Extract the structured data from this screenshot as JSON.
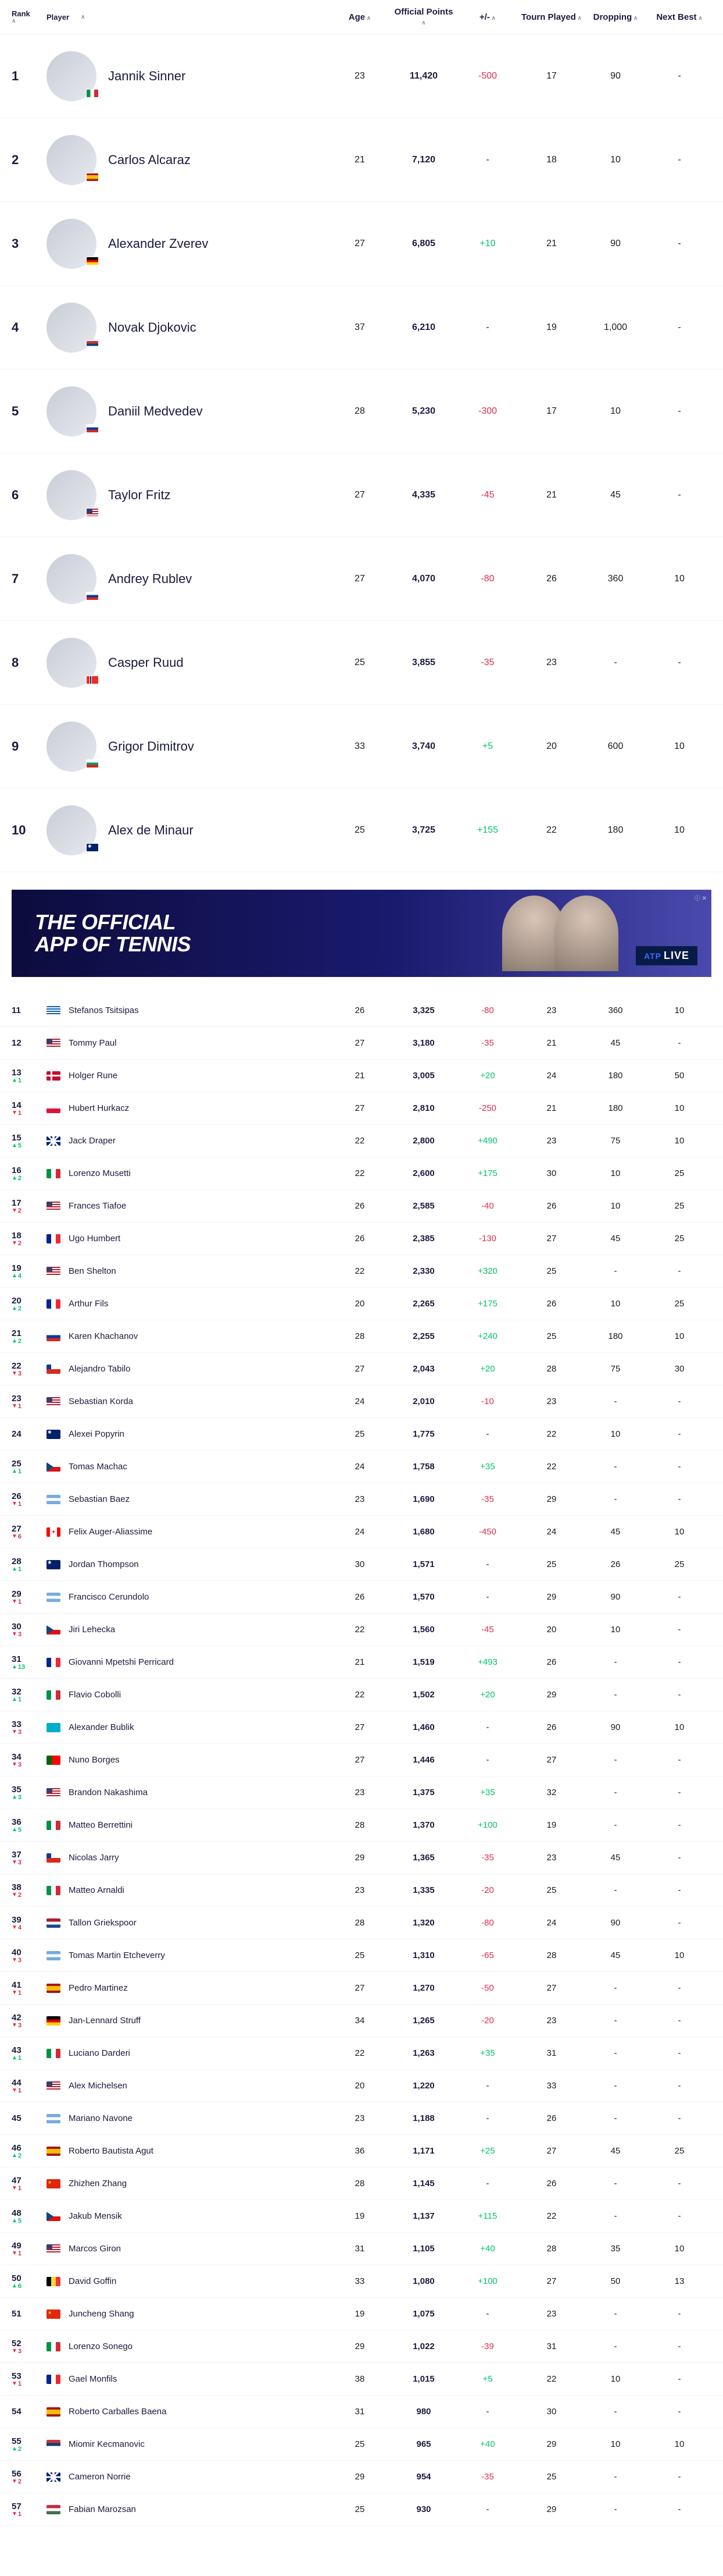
{
  "headers": {
    "rank": "Rank",
    "player": "Player",
    "age": "Age",
    "points": "Official Points",
    "pm": "+/-",
    "tourn": "Tourn Played",
    "dropping": "Dropping",
    "next": "Next Best"
  },
  "ad": {
    "title_line1": "THE OFFICIAL",
    "title_line2": "APP OF TENNIS",
    "live": "LIVE",
    "tag": "ⓘ ✕"
  },
  "top": [
    {
      "rank": "1",
      "change": "",
      "dir": "",
      "flag": "ITA",
      "name": "Jannik Sinner",
      "age": "23",
      "pts": "11,420",
      "pm": "-500",
      "pmc": "neg",
      "tourn": "17",
      "drop": "90",
      "next": "-"
    },
    {
      "rank": "2",
      "change": "",
      "dir": "",
      "flag": "ESP",
      "name": "Carlos Alcaraz",
      "age": "21",
      "pts": "7,120",
      "pm": "-",
      "pmc": "",
      "tourn": "18",
      "drop": "10",
      "next": "-"
    },
    {
      "rank": "3",
      "change": "",
      "dir": "",
      "flag": "GER",
      "name": "Alexander Zverev",
      "age": "27",
      "pts": "6,805",
      "pm": "+10",
      "pmc": "pos",
      "tourn": "21",
      "drop": "90",
      "next": "-"
    },
    {
      "rank": "4",
      "change": "",
      "dir": "",
      "flag": "SRB",
      "name": "Novak Djokovic",
      "age": "37",
      "pts": "6,210",
      "pm": "-",
      "pmc": "",
      "tourn": "19",
      "drop": "1,000",
      "next": "-"
    },
    {
      "rank": "5",
      "change": "",
      "dir": "",
      "flag": "RUS",
      "name": "Daniil Medvedev",
      "age": "28",
      "pts": "5,230",
      "pm": "-300",
      "pmc": "neg",
      "tourn": "17",
      "drop": "10",
      "next": "-"
    },
    {
      "rank": "6",
      "change": "",
      "dir": "",
      "flag": "USA",
      "name": "Taylor Fritz",
      "age": "27",
      "pts": "4,335",
      "pm": "-45",
      "pmc": "neg",
      "tourn": "21",
      "drop": "45",
      "next": "-"
    },
    {
      "rank": "7",
      "change": "",
      "dir": "",
      "flag": "RUS",
      "name": "Andrey Rublev",
      "age": "27",
      "pts": "4,070",
      "pm": "-80",
      "pmc": "neg",
      "tourn": "26",
      "drop": "360",
      "next": "10"
    },
    {
      "rank": "8",
      "change": "",
      "dir": "",
      "flag": "NOR",
      "name": "Casper Ruud",
      "age": "25",
      "pts": "3,855",
      "pm": "-35",
      "pmc": "neg",
      "tourn": "23",
      "drop": "-",
      "next": "-"
    },
    {
      "rank": "9",
      "change": "",
      "dir": "",
      "flag": "BUL",
      "name": "Grigor Dimitrov",
      "age": "33",
      "pts": "3,740",
      "pm": "+5",
      "pmc": "pos",
      "tourn": "20",
      "drop": "600",
      "next": "10"
    },
    {
      "rank": "10",
      "change": "",
      "dir": "",
      "flag": "AUS",
      "name": "Alex de Minaur",
      "age": "25",
      "pts": "3,725",
      "pm": "+155",
      "pmc": "pos",
      "tourn": "22",
      "drop": "180",
      "next": "10"
    }
  ],
  "rest": [
    {
      "rank": "11",
      "change": "",
      "dir": "",
      "flag": "GRE",
      "name": "Stefanos Tsitsipas",
      "age": "26",
      "pts": "3,325",
      "pm": "-80",
      "pmc": "neg",
      "tourn": "23",
      "drop": "360",
      "next": "10"
    },
    {
      "rank": "12",
      "change": "",
      "dir": "",
      "flag": "USA",
      "name": "Tommy Paul",
      "age": "27",
      "pts": "3,180",
      "pm": "-35",
      "pmc": "neg",
      "tourn": "21",
      "drop": "45",
      "next": "-"
    },
    {
      "rank": "13",
      "change": "1",
      "dir": "up",
      "flag": "DEN",
      "name": "Holger Rune",
      "age": "21",
      "pts": "3,005",
      "pm": "+20",
      "pmc": "pos",
      "tourn": "24",
      "drop": "180",
      "next": "50"
    },
    {
      "rank": "14",
      "change": "1",
      "dir": "down",
      "flag": "POL",
      "name": "Hubert Hurkacz",
      "age": "27",
      "pts": "2,810",
      "pm": "-250",
      "pmc": "neg",
      "tourn": "21",
      "drop": "180",
      "next": "10"
    },
    {
      "rank": "15",
      "change": "5",
      "dir": "up",
      "flag": "GBR",
      "name": "Jack Draper",
      "age": "22",
      "pts": "2,800",
      "pm": "+490",
      "pmc": "pos",
      "tourn": "23",
      "drop": "75",
      "next": "10"
    },
    {
      "rank": "16",
      "change": "2",
      "dir": "up",
      "flag": "ITA",
      "name": "Lorenzo Musetti",
      "age": "22",
      "pts": "2,600",
      "pm": "+175",
      "pmc": "pos",
      "tourn": "30",
      "drop": "10",
      "next": "25"
    },
    {
      "rank": "17",
      "change": "2",
      "dir": "down",
      "flag": "USA",
      "name": "Frances Tiafoe",
      "age": "26",
      "pts": "2,585",
      "pm": "-40",
      "pmc": "neg",
      "tourn": "26",
      "drop": "10",
      "next": "25"
    },
    {
      "rank": "18",
      "change": "2",
      "dir": "down",
      "flag": "FRA",
      "name": "Ugo Humbert",
      "age": "26",
      "pts": "2,385",
      "pm": "-130",
      "pmc": "neg",
      "tourn": "27",
      "drop": "45",
      "next": "25"
    },
    {
      "rank": "19",
      "change": "4",
      "dir": "up",
      "flag": "USA",
      "name": "Ben Shelton",
      "age": "22",
      "pts": "2,330",
      "pm": "+320",
      "pmc": "pos",
      "tourn": "25",
      "drop": "-",
      "next": "-"
    },
    {
      "rank": "20",
      "change": "2",
      "dir": "up",
      "flag": "FRA",
      "name": "Arthur Fils",
      "age": "20",
      "pts": "2,265",
      "pm": "+175",
      "pmc": "pos",
      "tourn": "26",
      "drop": "10",
      "next": "25"
    },
    {
      "rank": "21",
      "change": "2",
      "dir": "up",
      "flag": "RUS",
      "name": "Karen Khachanov",
      "age": "28",
      "pts": "2,255",
      "pm": "+240",
      "pmc": "pos",
      "tourn": "25",
      "drop": "180",
      "next": "10"
    },
    {
      "rank": "22",
      "change": "3",
      "dir": "down",
      "flag": "CHI",
      "name": "Alejandro Tabilo",
      "age": "27",
      "pts": "2,043",
      "pm": "+20",
      "pmc": "pos",
      "tourn": "28",
      "drop": "75",
      "next": "30"
    },
    {
      "rank": "23",
      "change": "1",
      "dir": "down",
      "flag": "USA",
      "name": "Sebastian Korda",
      "age": "24",
      "pts": "2,010",
      "pm": "-10",
      "pmc": "neg",
      "tourn": "23",
      "drop": "-",
      "next": "-"
    },
    {
      "rank": "24",
      "change": "",
      "dir": "",
      "flag": "AUS",
      "name": "Alexei Popyrin",
      "age": "25",
      "pts": "1,775",
      "pm": "-",
      "pmc": "",
      "tourn": "22",
      "drop": "10",
      "next": "-"
    },
    {
      "rank": "25",
      "change": "1",
      "dir": "up",
      "flag": "CZE",
      "name": "Tomas Machac",
      "age": "24",
      "pts": "1,758",
      "pm": "+35",
      "pmc": "pos",
      "tourn": "22",
      "drop": "-",
      "next": "-"
    },
    {
      "rank": "26",
      "change": "1",
      "dir": "down",
      "flag": "ARG",
      "name": "Sebastian Baez",
      "age": "23",
      "pts": "1,690",
      "pm": "-35",
      "pmc": "neg",
      "tourn": "29",
      "drop": "-",
      "next": "-"
    },
    {
      "rank": "27",
      "change": "6",
      "dir": "down",
      "flag": "CAN",
      "name": "Felix Auger-Aliassime",
      "age": "24",
      "pts": "1,680",
      "pm": "-450",
      "pmc": "neg",
      "tourn": "24",
      "drop": "45",
      "next": "10"
    },
    {
      "rank": "28",
      "change": "1",
      "dir": "up",
      "flag": "AUS",
      "name": "Jordan Thompson",
      "age": "30",
      "pts": "1,571",
      "pm": "-",
      "pmc": "",
      "tourn": "25",
      "drop": "26",
      "next": "25"
    },
    {
      "rank": "29",
      "change": "1",
      "dir": "down",
      "flag": "ARG",
      "name": "Francisco Cerundolo",
      "age": "26",
      "pts": "1,570",
      "pm": "-",
      "pmc": "",
      "tourn": "29",
      "drop": "90",
      "next": "-"
    },
    {
      "rank": "30",
      "change": "3",
      "dir": "down",
      "flag": "CZE",
      "name": "Jiri Lehecka",
      "age": "22",
      "pts": "1,560",
      "pm": "-45",
      "pmc": "neg",
      "tourn": "20",
      "drop": "10",
      "next": "-"
    },
    {
      "rank": "31",
      "change": "13",
      "dir": "up",
      "flag": "FRA",
      "name": "Giovanni Mpetshi Perricard",
      "age": "21",
      "pts": "1,519",
      "pm": "+493",
      "pmc": "pos",
      "tourn": "26",
      "drop": "-",
      "next": "-"
    },
    {
      "rank": "32",
      "change": "1",
      "dir": "up",
      "flag": "ITA",
      "name": "Flavio Cobolli",
      "age": "22",
      "pts": "1,502",
      "pm": "+20",
      "pmc": "pos",
      "tourn": "29",
      "drop": "-",
      "next": "-"
    },
    {
      "rank": "33",
      "change": "3",
      "dir": "down",
      "flag": "KAZ",
      "name": "Alexander Bublik",
      "age": "27",
      "pts": "1,460",
      "pm": "-",
      "pmc": "",
      "tourn": "26",
      "drop": "90",
      "next": "10"
    },
    {
      "rank": "34",
      "change": "3",
      "dir": "down",
      "flag": "POR",
      "name": "Nuno Borges",
      "age": "27",
      "pts": "1,446",
      "pm": "-",
      "pmc": "",
      "tourn": "27",
      "drop": "-",
      "next": "-"
    },
    {
      "rank": "35",
      "change": "3",
      "dir": "up",
      "flag": "USA",
      "name": "Brandon Nakashima",
      "age": "23",
      "pts": "1,375",
      "pm": "+35",
      "pmc": "pos",
      "tourn": "32",
      "drop": "-",
      "next": "-"
    },
    {
      "rank": "36",
      "change": "5",
      "dir": "up",
      "flag": "ITA",
      "name": "Matteo Berrettini",
      "age": "28",
      "pts": "1,370",
      "pm": "+100",
      "pmc": "pos",
      "tourn": "19",
      "drop": "-",
      "next": "-"
    },
    {
      "rank": "37",
      "change": "3",
      "dir": "down",
      "flag": "CHI",
      "name": "Nicolas Jarry",
      "age": "29",
      "pts": "1,365",
      "pm": "-35",
      "pmc": "neg",
      "tourn": "23",
      "drop": "45",
      "next": "-"
    },
    {
      "rank": "38",
      "change": "2",
      "dir": "down",
      "flag": "ITA",
      "name": "Matteo Arnaldi",
      "age": "23",
      "pts": "1,335",
      "pm": "-20",
      "pmc": "neg",
      "tourn": "25",
      "drop": "-",
      "next": "-"
    },
    {
      "rank": "39",
      "change": "4",
      "dir": "down",
      "flag": "NED",
      "name": "Tallon Griekspoor",
      "age": "28",
      "pts": "1,320",
      "pm": "-80",
      "pmc": "neg",
      "tourn": "24",
      "drop": "90",
      "next": "-"
    },
    {
      "rank": "40",
      "change": "3",
      "dir": "down",
      "flag": "ARG",
      "name": "Tomas Martin Etcheverry",
      "age": "25",
      "pts": "1,310",
      "pm": "-65",
      "pmc": "neg",
      "tourn": "28",
      "drop": "45",
      "next": "10"
    },
    {
      "rank": "41",
      "change": "1",
      "dir": "down",
      "flag": "ESP",
      "name": "Pedro Martinez",
      "age": "27",
      "pts": "1,270",
      "pm": "-50",
      "pmc": "neg",
      "tourn": "27",
      "drop": "-",
      "next": "-"
    },
    {
      "rank": "42",
      "change": "3",
      "dir": "down",
      "flag": "GER",
      "name": "Jan-Lennard Struff",
      "age": "34",
      "pts": "1,265",
      "pm": "-20",
      "pmc": "neg",
      "tourn": "23",
      "drop": "-",
      "next": "-"
    },
    {
      "rank": "43",
      "change": "1",
      "dir": "up",
      "flag": "ITA",
      "name": "Luciano Darderi",
      "age": "22",
      "pts": "1,263",
      "pm": "+35",
      "pmc": "pos",
      "tourn": "31",
      "drop": "-",
      "next": "-"
    },
    {
      "rank": "44",
      "change": "1",
      "dir": "down",
      "flag": "USA",
      "name": "Alex Michelsen",
      "age": "20",
      "pts": "1,220",
      "pm": "-",
      "pmc": "",
      "tourn": "33",
      "drop": "-",
      "next": "-"
    },
    {
      "rank": "45",
      "change": "",
      "dir": "",
      "flag": "ARG",
      "name": "Mariano Navone",
      "age": "23",
      "pts": "1,188",
      "pm": "-",
      "pmc": "",
      "tourn": "26",
      "drop": "-",
      "next": "-"
    },
    {
      "rank": "46",
      "change": "2",
      "dir": "up",
      "flag": "ESP",
      "name": "Roberto Bautista Agut",
      "age": "36",
      "pts": "1,171",
      "pm": "+25",
      "pmc": "pos",
      "tourn": "27",
      "drop": "45",
      "next": "25"
    },
    {
      "rank": "47",
      "change": "1",
      "dir": "down",
      "flag": "CHN",
      "name": "Zhizhen Zhang",
      "age": "28",
      "pts": "1,145",
      "pm": "-",
      "pmc": "",
      "tourn": "26",
      "drop": "-",
      "next": "-"
    },
    {
      "rank": "48",
      "change": "5",
      "dir": "up",
      "flag": "CZE",
      "name": "Jakub Mensik",
      "age": "19",
      "pts": "1,137",
      "pm": "+115",
      "pmc": "pos",
      "tourn": "22",
      "drop": "-",
      "next": "-"
    },
    {
      "rank": "49",
      "change": "1",
      "dir": "down",
      "flag": "USA",
      "name": "Marcos Giron",
      "age": "31",
      "pts": "1,105",
      "pm": "+40",
      "pmc": "pos",
      "tourn": "28",
      "drop": "35",
      "next": "10"
    },
    {
      "rank": "50",
      "change": "6",
      "dir": "up",
      "flag": "BEL",
      "name": "David Goffin",
      "age": "33",
      "pts": "1,080",
      "pm": "+100",
      "pmc": "pos",
      "tourn": "27",
      "drop": "50",
      "next": "13"
    },
    {
      "rank": "51",
      "change": "",
      "dir": "",
      "flag": "CHN",
      "name": "Juncheng Shang",
      "age": "19",
      "pts": "1,075",
      "pm": "-",
      "pmc": "",
      "tourn": "23",
      "drop": "-",
      "next": "-"
    },
    {
      "rank": "52",
      "change": "3",
      "dir": "down",
      "flag": "ITA",
      "name": "Lorenzo Sonego",
      "age": "29",
      "pts": "1,022",
      "pm": "-39",
      "pmc": "neg",
      "tourn": "31",
      "drop": "-",
      "next": "-"
    },
    {
      "rank": "53",
      "change": "1",
      "dir": "down",
      "flag": "FRA",
      "name": "Gael Monfils",
      "age": "38",
      "pts": "1,015",
      "pm": "+5",
      "pmc": "pos",
      "tourn": "22",
      "drop": "10",
      "next": "-"
    },
    {
      "rank": "54",
      "change": "",
      "dir": "",
      "flag": "ESP",
      "name": "Roberto Carballes Baena",
      "age": "31",
      "pts": "980",
      "pm": "-",
      "pmc": "",
      "tourn": "30",
      "drop": "-",
      "next": "-"
    },
    {
      "rank": "55",
      "change": "2",
      "dir": "up",
      "flag": "SRB",
      "name": "Miomir Kecmanovic",
      "age": "25",
      "pts": "965",
      "pm": "+40",
      "pmc": "pos",
      "tourn": "29",
      "drop": "10",
      "next": "10"
    },
    {
      "rank": "56",
      "change": "2",
      "dir": "down",
      "flag": "GBR",
      "name": "Cameron Norrie",
      "age": "29",
      "pts": "954",
      "pm": "-35",
      "pmc": "neg",
      "tourn": "25",
      "drop": "-",
      "next": "-"
    },
    {
      "rank": "57",
      "change": "1",
      "dir": "down",
      "flag": "HUN",
      "name": "Fabian Marozsan",
      "age": "25",
      "pts": "930",
      "pm": "-",
      "pmc": "",
      "tourn": "29",
      "drop": "-",
      "next": "-"
    }
  ]
}
